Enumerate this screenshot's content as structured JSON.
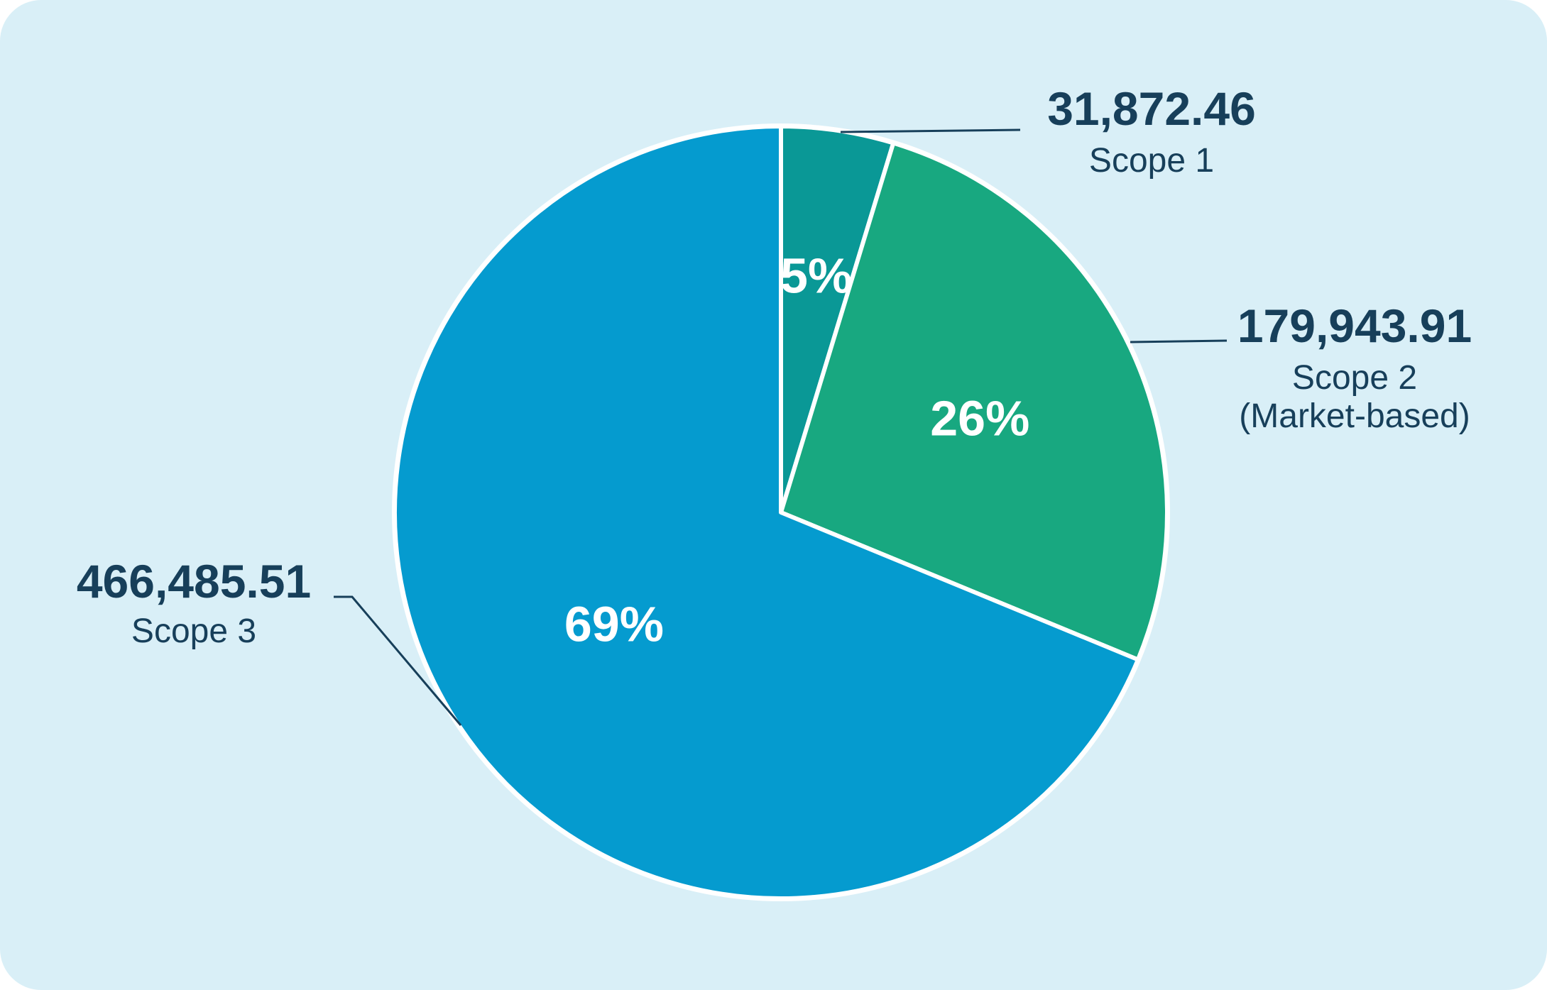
{
  "chart_data": {
    "type": "pie",
    "slices": [
      {
        "value": 31872.46,
        "value_label": "31,872.46",
        "name": "Scope 1",
        "name_line2": "",
        "percent_label": "5%",
        "color": "#0a9896"
      },
      {
        "value": 179943.91,
        "value_label": "179,943.91",
        "name": "Scope 2",
        "name_line2": "(Market-based)",
        "percent_label": "26%",
        "color": "#18a880"
      },
      {
        "value": 466485.51,
        "value_label": "466,485.51",
        "name": "Scope 3",
        "name_line2": "",
        "percent_label": "69%",
        "color": "#059bcf"
      }
    ],
    "start_angle": "12 o'clock",
    "direction": "clockwise",
    "slice_border_color": "#ffffff",
    "label_color": "#173f5a",
    "background_color": "#d9eff7"
  }
}
